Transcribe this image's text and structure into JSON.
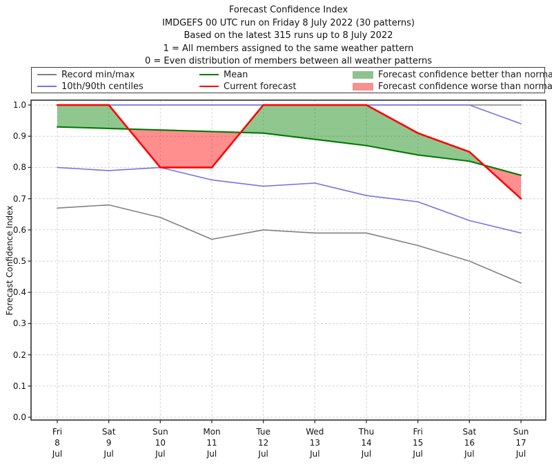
{
  "figure": {
    "background": "#ffffff",
    "axis_color": "#2e2e2e",
    "grid_color": "#cfcfcf"
  },
  "chart_data": {
    "type": "line",
    "title": "Forecast Confidence Index",
    "title_lines": [
      "Forecast Confidence Index",
      "IMDGEFS 00 UTC run on Friday 8 July 2022 (30 patterns)",
      "Based on the latest 315 runs up to 8 July 2022",
      "1 = All members assigned to the same weather pattern",
      "0 = Even distribution of members between all weather patterns"
    ],
    "ylabel": "Forecast Confidence Index",
    "xlabel": "",
    "ylim": [
      0.0,
      1.0
    ],
    "ytick_labels": [
      "0.0",
      "0.1",
      "0.2",
      "0.3",
      "0.4",
      "0.5",
      "0.6",
      "0.7",
      "0.8",
      "0.9",
      "1.0"
    ],
    "grid": true,
    "legend_position": "top",
    "categories": [
      {
        "day": "Fri",
        "date": "8",
        "month": "Jul"
      },
      {
        "day": "Sat",
        "date": "9",
        "month": "Jul"
      },
      {
        "day": "Sun",
        "date": "10",
        "month": "Jul"
      },
      {
        "day": "Mon",
        "date": "11",
        "month": "Jul"
      },
      {
        "day": "Tue",
        "date": "12",
        "month": "Jul"
      },
      {
        "day": "Wed",
        "date": "13",
        "month": "Jul"
      },
      {
        "day": "Thu",
        "date": "14",
        "month": "Jul"
      },
      {
        "day": "Fri",
        "date": "15",
        "month": "Jul"
      },
      {
        "day": "Sat",
        "date": "16",
        "month": "Jul"
      },
      {
        "day": "Sun",
        "date": "17",
        "month": "Jul"
      }
    ],
    "series": [
      {
        "name": "record-max",
        "legend": "Record min/max",
        "color": "#808080",
        "width": 1.6,
        "values": [
          1.0,
          1.0,
          1.0,
          1.0,
          1.0,
          1.0,
          1.0,
          1.0,
          1.0,
          1.0
        ]
      },
      {
        "name": "record-min",
        "legend": "Record min/max",
        "color": "#808080",
        "width": 1.6,
        "values": [
          0.67,
          0.68,
          0.64,
          0.57,
          0.6,
          0.59,
          0.59,
          0.55,
          0.5,
          0.43
        ]
      },
      {
        "name": "centile-90th",
        "legend": "10th/90th centiles",
        "color": "#7373e8",
        "width": 1.6,
        "values": [
          1.0,
          1.0,
          1.0,
          1.0,
          1.0,
          1.0,
          1.0,
          1.0,
          1.0,
          0.94
        ]
      },
      {
        "name": "centile-10th",
        "legend": "10th/90th centiles",
        "color": "#7373e8",
        "width": 1.6,
        "values": [
          0.8,
          0.79,
          0.8,
          0.76,
          0.74,
          0.75,
          0.71,
          0.69,
          0.63,
          0.59
        ]
      },
      {
        "name": "mean",
        "legend": "Mean",
        "color": "#007a00",
        "width": 2.1,
        "values": [
          0.93,
          0.925,
          0.92,
          0.915,
          0.91,
          0.89,
          0.87,
          0.84,
          0.82,
          0.775
        ]
      },
      {
        "name": "current-forecast",
        "legend": "Current forecast",
        "color": "#ff0000",
        "width": 2.6,
        "values": [
          1.0,
          1.0,
          0.8,
          0.8,
          1.0,
          1.0,
          1.0,
          0.91,
          0.85,
          0.7
        ]
      }
    ],
    "fills": {
      "better": {
        "label": "Forecast confidence better than normal",
        "color": "rgba(0,128,0,0.44)",
        "between": [
          "current-forecast",
          "mean"
        ],
        "when": "forecast_above_mean"
      },
      "worse": {
        "label": "Forecast confidence worse than normal",
        "color": "rgba(255,0,0,0.44)",
        "between": [
          "current-forecast",
          "mean"
        ],
        "when": "forecast_below_mean"
      }
    }
  },
  "legend": {
    "entries": [
      {
        "kind": "line",
        "color": "#808080",
        "label": "Record min/max"
      },
      {
        "kind": "line",
        "color": "#7373e8",
        "label": "10th/90th centiles"
      },
      {
        "kind": "line",
        "color": "#007a00",
        "label": "Mean"
      },
      {
        "kind": "line",
        "color": "#ff0000",
        "label": "Current forecast"
      },
      {
        "kind": "patch",
        "color": "#8fc28f",
        "label": "Forecast confidence better than normal"
      },
      {
        "kind": "patch",
        "color": "#f89090",
        "label": "Forecast confidence worse than normal"
      }
    ]
  }
}
